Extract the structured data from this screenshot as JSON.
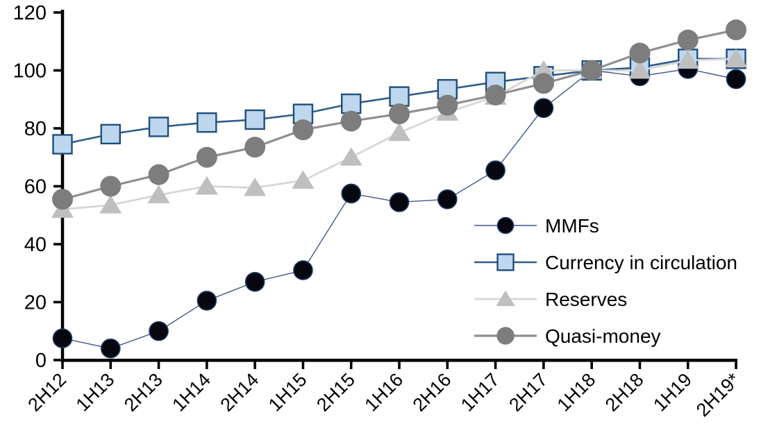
{
  "chart_data": {
    "type": "line",
    "title": "",
    "xlabel": "",
    "ylabel": "",
    "categories": [
      "2H12",
      "1H13",
      "2H13",
      "1H14",
      "2H14",
      "1H15",
      "2H15",
      "1H16",
      "2H16",
      "1H17",
      "2H17",
      "1H18",
      "2H18",
      "1H19",
      "2H19*"
    ],
    "series": [
      {
        "name": "MMFs",
        "values": [
          7.5,
          4,
          10,
          20.5,
          27,
          31,
          57.5,
          54.5,
          55.5,
          65.5,
          87,
          100,
          98,
          100.5,
          97
        ],
        "line_color": "#3B5688",
        "line_width": 1.4,
        "marker": "circle",
        "marker_size": 27,
        "marker_fill": "#070710",
        "marker_stroke": "#1F3864",
        "marker_stroke_width": 1.6
      },
      {
        "name": "Currency in circulation",
        "values": [
          74.5,
          78,
          80.5,
          82,
          83,
          85,
          88.5,
          91,
          93.5,
          96,
          98,
          100,
          101,
          104,
          104
        ],
        "line_color": "#2E5C8A",
        "line_width": 2.6,
        "marker": "square",
        "marker_size": 27,
        "marker_fill": "#BDD7EE",
        "marker_stroke": "#1F4E79",
        "marker_stroke_width": 2.4
      },
      {
        "name": "Reserves",
        "values": [
          52,
          53.5,
          57,
          60,
          59.5,
          62,
          70,
          78.5,
          85.5,
          91,
          100,
          100,
          100,
          103.5,
          104
        ],
        "line_color": "#D6D6D6",
        "line_width": 2.8,
        "marker": "triangle",
        "marker_size": 28,
        "marker_fill": "#BFBFBF",
        "marker_stroke": "none",
        "marker_stroke_width": 0
      },
      {
        "name": "Quasi-money",
        "values": [
          55.5,
          60,
          64,
          70,
          73.5,
          79.5,
          82.5,
          85,
          88,
          91.5,
          95.5,
          100,
          106,
          110.5,
          114
        ],
        "line_color": "#8F8F8F",
        "line_width": 3.2,
        "marker": "circle",
        "marker_size": 30,
        "marker_fill": "#7D7D7D",
        "marker_stroke": "none",
        "marker_stroke_width": 0
      }
    ],
    "ylim": [
      0,
      120
    ],
    "ytick_step": 20,
    "ytick_labels": [
      "0",
      "20",
      "40",
      "60",
      "80",
      "100",
      "120"
    ],
    "grid": false,
    "legend_position": "middle-right",
    "legend_labels": [
      "MMFs",
      "Currency in circulation",
      "Reserves",
      "Quasi-money"
    ],
    "axis_color": "#000000",
    "background_color": "#FFFFFF"
  }
}
